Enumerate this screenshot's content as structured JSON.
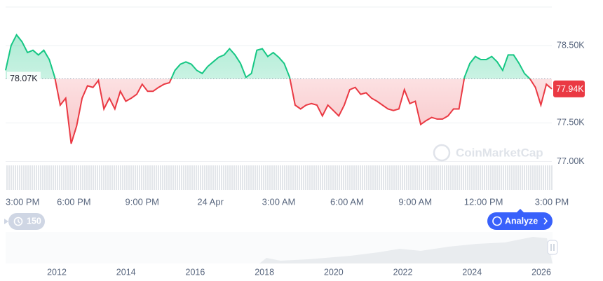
{
  "chart_data": {
    "type": "line",
    "series": [
      {
        "color_up": "#16c784",
        "color_down": "#ea3943",
        "values": [
          78180,
          78500,
          78640,
          78550,
          78410,
          78440,
          78380,
          78440,
          78320,
          78090,
          77730,
          77820,
          77230,
          77460,
          77820,
          77980,
          77960,
          78050,
          77680,
          77820,
          77680,
          77910,
          77780,
          77820,
          77870,
          78000,
          77910,
          77910,
          77960,
          78000,
          78020,
          78180,
          78260,
          78290,
          78260,
          78180,
          78140,
          78230,
          78290,
          78350,
          78380,
          78460,
          78380,
          78270,
          78090,
          78140,
          78440,
          78460,
          78360,
          78410,
          78350,
          78270,
          78090,
          77730,
          77680,
          77730,
          77750,
          77730,
          77590,
          77730,
          77660,
          77590,
          77730,
          77930,
          77960,
          77870,
          77890,
          77820,
          77780,
          77730,
          77680,
          77660,
          77680,
          77930,
          77750,
          77780,
          77480,
          77530,
          77570,
          77550,
          77550,
          77590,
          77680,
          77680,
          78090,
          78270,
          78360,
          78320,
          78320,
          78360,
          78290,
          78180,
          78380,
          78380,
          78270,
          78140,
          78070,
          77960,
          77730,
          78000,
          77940
        ]
      }
    ],
    "reference": {
      "value": 78070,
      "label": "78.07K"
    },
    "current": {
      "value": 77940,
      "label": "77.94K"
    },
    "ylim": [
      76950,
      79000
    ],
    "yticks": [
      {
        "value": 77000,
        "label": "77.00K"
      },
      {
        "value": 77500,
        "label": "77.50K"
      },
      {
        "value": 78500,
        "label": "78.50K"
      }
    ],
    "xticks": [
      "3:00 PM",
      "6:00 PM",
      "9:00 PM",
      "24 Apr",
      "3:00 AM",
      "6:00 AM",
      "9:00 AM",
      "12:00 PM",
      "3:00 PM"
    ],
    "grid": true,
    "watermark": "CoinMarketCap",
    "range_button": "150",
    "analyze_button": "Analyze",
    "navigator_ticks": [
      2012,
      2014,
      2016,
      2018,
      2020,
      2022,
      2024,
      2026
    ]
  }
}
